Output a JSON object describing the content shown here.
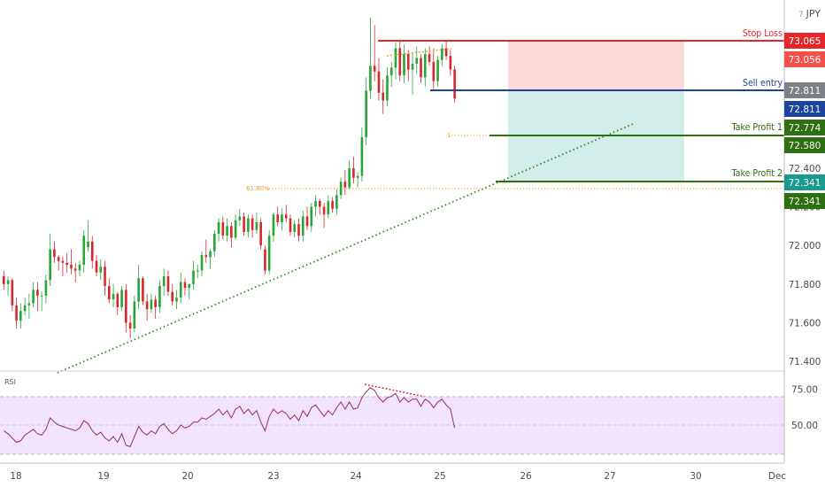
{
  "chart_data": {
    "type": "candlestick",
    "symbol": "JPY",
    "price_axis": {
      "range": [
        71.35,
        73.27
      ],
      "ticks": [
        "72.400",
        "72.200",
        "72.000",
        "71.800",
        "71.600",
        "71.400"
      ]
    },
    "time_axis": {
      "ticks": [
        "18",
        "19",
        "20",
        "23",
        "24",
        "25",
        "26",
        "27",
        "30",
        "Dec"
      ]
    },
    "levels": [
      {
        "id": "stop-loss",
        "label": "Stop Loss",
        "price": 73.065,
        "tag": "73.065",
        "color": "#e5262b"
      },
      {
        "id": "sell-entry",
        "label": "Sell entry",
        "price": 72.811,
        "tag": "72.811",
        "color": "#1d45a0"
      },
      {
        "id": "take-profit-1",
        "label": "Take Profit 1",
        "price": 72.58,
        "tag": "72.580",
        "color": "#2e6f12"
      },
      {
        "id": "take-profit-2",
        "label": "Take Profit 2",
        "price": 72.341,
        "tag": "72.341",
        "color": "#2e6f12"
      }
    ],
    "price_tags": [
      {
        "text": "73.056",
        "color": "#f4504a"
      },
      {
        "text": "72.811",
        "color": "#7d7f86"
      },
      {
        "text": "72.774",
        "color": "#2e6f12"
      },
      {
        "text": "72.341",
        "color": "#1a9a8c"
      }
    ],
    "fib_labels": {
      "fib_618": "61.80%",
      "fib_1": "1"
    },
    "rsi": {
      "label": "RSI",
      "ticks": [
        "75.00",
        "50.00"
      ],
      "band": [
        30,
        70
      ]
    },
    "colors": {
      "up": "#26a637",
      "down": "#d8262d",
      "rsi_line": "#9c2a6f",
      "rsi_band": "#f1e3fb",
      "trend": "#2f8a1e",
      "fib": "#e8a13a"
    },
    "candles": [
      [
        71.84,
        71.87,
        71.77,
        71.8
      ],
      [
        71.8,
        71.84,
        71.74,
        71.82
      ],
      [
        71.82,
        71.83,
        71.66,
        71.69
      ],
      [
        71.69,
        71.73,
        71.57,
        71.61
      ],
      [
        71.61,
        71.7,
        71.57,
        71.66
      ],
      [
        71.66,
        71.73,
        71.64,
        71.69
      ],
      [
        71.69,
        71.75,
        71.62,
        71.7
      ],
      [
        71.7,
        71.81,
        71.68,
        71.77
      ],
      [
        71.77,
        71.81,
        71.66,
        71.74
      ],
      [
        71.74,
        71.76,
        71.66,
        71.74
      ],
      [
        71.74,
        71.85,
        71.7,
        71.82
      ],
      [
        71.82,
        72.06,
        71.79,
        71.98
      ],
      [
        71.98,
        72.02,
        71.91,
        71.94
      ],
      [
        71.94,
        71.95,
        71.87,
        71.92
      ],
      [
        71.92,
        71.94,
        71.84,
        71.91
      ],
      [
        71.91,
        71.96,
        71.86,
        71.9
      ],
      [
        71.9,
        71.98,
        71.85,
        71.88
      ],
      [
        71.88,
        71.91,
        71.81,
        71.87
      ],
      [
        71.87,
        71.92,
        71.84,
        71.9
      ],
      [
        71.9,
        72.08,
        71.86,
        72.05
      ],
      [
        71.99,
        72.13,
        71.97,
        72.02
      ],
      [
        72.02,
        72.05,
        71.88,
        71.92
      ],
      [
        71.92,
        71.95,
        71.84,
        71.86
      ],
      [
        71.86,
        71.93,
        71.82,
        71.89
      ],
      [
        71.89,
        71.92,
        71.74,
        71.79
      ],
      [
        71.79,
        71.83,
        71.7,
        71.72
      ],
      [
        71.72,
        71.8,
        71.68,
        71.75
      ],
      [
        71.75,
        71.76,
        71.64,
        71.68
      ],
      [
        71.68,
        71.79,
        71.66,
        71.77
      ],
      [
        71.77,
        71.8,
        71.55,
        71.6
      ],
      [
        71.6,
        71.64,
        71.52,
        71.57
      ],
      [
        71.57,
        71.74,
        71.55,
        71.71
      ],
      [
        71.71,
        71.9,
        71.67,
        71.83
      ],
      [
        71.83,
        71.84,
        71.69,
        71.71
      ],
      [
        71.71,
        71.75,
        71.61,
        71.67
      ],
      [
        71.67,
        71.75,
        71.65,
        71.72
      ],
      [
        71.72,
        71.74,
        71.62,
        71.68
      ],
      [
        71.68,
        71.82,
        71.65,
        71.79
      ],
      [
        71.79,
        71.88,
        71.74,
        71.84
      ],
      [
        71.84,
        71.87,
        71.74,
        71.76
      ],
      [
        71.76,
        71.8,
        71.69,
        71.71
      ],
      [
        71.71,
        71.77,
        71.67,
        71.73
      ],
      [
        71.73,
        71.86,
        71.7,
        71.81
      ],
      [
        71.81,
        71.83,
        71.74,
        71.78
      ],
      [
        71.78,
        71.8,
        71.72,
        71.8
      ],
      [
        71.8,
        71.92,
        71.77,
        71.87
      ],
      [
        71.87,
        71.9,
        71.83,
        71.87
      ],
      [
        71.87,
        71.97,
        71.84,
        71.95
      ],
      [
        71.95,
        72.03,
        71.91,
        71.94
      ],
      [
        71.94,
        71.98,
        71.88,
        71.97
      ],
      [
        71.97,
        72.08,
        71.94,
        72.06
      ],
      [
        72.06,
        72.14,
        72.02,
        72.12
      ],
      [
        72.12,
        72.15,
        72.03,
        72.05
      ],
      [
        72.05,
        72.14,
        72.02,
        72.1
      ],
      [
        72.1,
        72.12,
        71.99,
        72.04
      ],
      [
        72.04,
        72.16,
        72.03,
        72.13
      ],
      [
        72.13,
        72.19,
        72.1,
        72.15
      ],
      [
        72.15,
        72.17,
        72.05,
        72.07
      ],
      [
        72.07,
        72.16,
        72.04,
        72.14
      ],
      [
        72.14,
        72.16,
        72.04,
        72.08
      ],
      [
        72.08,
        72.17,
        72.06,
        72.12
      ],
      [
        72.12,
        72.14,
        71.98,
        72.0
      ],
      [
        71.98,
        72.0,
        71.85,
        71.87
      ],
      [
        71.87,
        72.08,
        71.85,
        72.05
      ],
      [
        72.05,
        72.17,
        72.02,
        72.16
      ],
      [
        72.16,
        72.2,
        72.1,
        72.12
      ],
      [
        72.12,
        72.19,
        72.08,
        72.16
      ],
      [
        72.16,
        72.21,
        72.12,
        72.14
      ],
      [
        72.14,
        72.16,
        72.05,
        72.07
      ],
      [
        72.07,
        72.13,
        72.04,
        72.11
      ],
      [
        72.11,
        72.14,
        72.02,
        72.05
      ],
      [
        72.05,
        72.18,
        72.02,
        72.15
      ],
      [
        72.15,
        72.2,
        72.08,
        72.1
      ],
      [
        72.1,
        72.22,
        72.07,
        72.2
      ],
      [
        72.2,
        72.26,
        72.15,
        72.23
      ],
      [
        72.23,
        72.24,
        72.16,
        72.2
      ],
      [
        72.2,
        72.22,
        72.09,
        72.16
      ],
      [
        72.16,
        72.26,
        72.14,
        72.23
      ],
      [
        72.23,
        72.25,
        72.17,
        72.19
      ],
      [
        72.19,
        72.29,
        72.16,
        72.26
      ],
      [
        72.26,
        72.35,
        72.24,
        72.33
      ],
      [
        72.33,
        72.39,
        72.26,
        72.3
      ],
      [
        72.3,
        72.44,
        72.29,
        72.4
      ],
      [
        72.4,
        72.46,
        72.32,
        72.35
      ],
      [
        72.35,
        72.38,
        72.3,
        72.36
      ],
      [
        72.36,
        72.61,
        72.33,
        72.56
      ],
      [
        72.56,
        72.87,
        72.52,
        72.8
      ],
      [
        72.8,
        73.18,
        72.76,
        72.93
      ],
      [
        72.93,
        73.14,
        72.85,
        72.9
      ],
      [
        72.9,
        72.97,
        72.75,
        72.79
      ],
      [
        72.79,
        72.86,
        72.68,
        72.75
      ],
      [
        72.75,
        72.92,
        72.72,
        72.88
      ],
      [
        72.88,
        72.95,
        72.82,
        72.92
      ],
      [
        72.92,
        73.05,
        72.86,
        73.02
      ],
      [
        73.02,
        73.06,
        72.85,
        72.88
      ],
      [
        72.88,
        73.04,
        72.84,
        72.99
      ],
      [
        72.99,
        73.01,
        72.85,
        72.91
      ],
      [
        72.91,
        73.0,
        72.78,
        72.94
      ],
      [
        72.94,
        73.03,
        72.89,
        72.97
      ],
      [
        72.97,
        72.99,
        72.84,
        72.87
      ],
      [
        72.87,
        73.02,
        72.82,
        72.99
      ],
      [
        72.99,
        73.03,
        72.93,
        72.95
      ],
      [
        72.95,
        73.02,
        72.81,
        72.85
      ],
      [
        72.85,
        72.98,
        72.82,
        72.96
      ],
      [
        72.96,
        73.04,
        72.93,
        73.02
      ],
      [
        73.02,
        73.06,
        72.96,
        72.98
      ],
      [
        72.98,
        73.01,
        72.88,
        72.91
      ],
      [
        72.91,
        72.93,
        72.74,
        72.76
      ]
    ],
    "rsi_values": [
      46,
      44,
      41,
      38,
      39,
      43,
      45,
      47,
      44,
      43,
      47,
      55,
      52,
      50,
      49,
      48,
      47,
      46,
      48,
      53,
      51,
      46,
      43,
      45,
      41,
      39,
      42,
      38,
      44,
      36,
      35,
      42,
      49,
      45,
      43,
      46,
      44,
      49,
      51,
      47,
      44,
      46,
      50,
      48,
      49,
      52,
      52,
      55,
      54,
      56,
      58,
      61,
      57,
      60,
      55,
      61,
      63,
      58,
      61,
      57,
      60,
      52,
      46,
      56,
      61,
      58,
      60,
      58,
      54,
      57,
      53,
      60,
      56,
      62,
      64,
      60,
      56,
      60,
      57,
      62,
      66,
      61,
      66,
      61,
      62,
      69,
      73,
      76,
      74,
      69,
      66,
      69,
      70,
      72,
      66,
      69,
      66,
      68,
      68,
      63,
      68,
      66,
      62,
      66,
      68,
      64,
      61,
      48
    ]
  }
}
